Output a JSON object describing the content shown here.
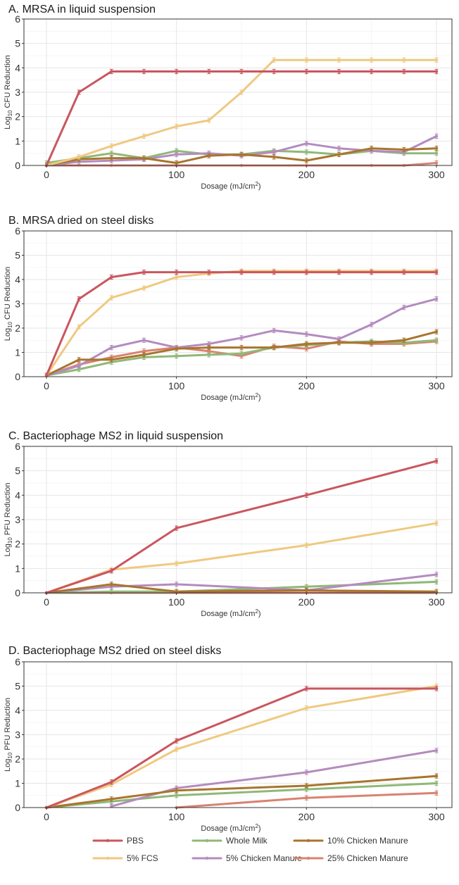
{
  "chart_data": [
    {
      "type": "line",
      "title": "A. MRSA in liquid suspension",
      "xlabel": "Dosage (mJ/cm2)",
      "ylabel": "Log10 CFU Reduction",
      "xlim": [
        0,
        300
      ],
      "ylim": [
        0,
        6
      ],
      "xticks": [
        0,
        100,
        200,
        300
      ],
      "yticks": [
        0,
        1,
        2,
        3,
        4,
        5,
        6
      ],
      "grid": true,
      "series": [
        {
          "name": "PBS",
          "x": [
            0,
            25,
            50,
            75,
            100,
            125,
            150,
            175,
            200,
            225,
            250,
            275,
            300
          ],
          "y": [
            0,
            3.0,
            3.85,
            3.85,
            3.85,
            3.85,
            3.85,
            3.85,
            3.85,
            3.85,
            3.85,
            3.85,
            3.85
          ]
        },
        {
          "name": "5% FCS",
          "x": [
            0,
            25,
            50,
            75,
            100,
            125,
            150,
            175,
            200,
            225,
            250,
            275,
            300
          ],
          "y": [
            0,
            0.35,
            0.8,
            1.2,
            1.6,
            1.85,
            3.0,
            4.32,
            4.32,
            4.32,
            4.32,
            4.32,
            4.32
          ]
        },
        {
          "name": "Whole Milk",
          "x": [
            0,
            25,
            50,
            75,
            100,
            125,
            150,
            175,
            200,
            225,
            250,
            275,
            300
          ],
          "y": [
            0.1,
            0.3,
            0.5,
            0.3,
            0.6,
            0.45,
            0.45,
            0.6,
            0.55,
            0.45,
            0.6,
            0.5,
            0.5
          ]
        },
        {
          "name": "5% Chicken Manure",
          "x": [
            0,
            25,
            50,
            75,
            100,
            125,
            150,
            175,
            200,
            225,
            250,
            275,
            300
          ],
          "y": [
            0,
            0.15,
            0.2,
            0.25,
            0.45,
            0.5,
            0.4,
            0.55,
            0.9,
            0.7,
            0.6,
            0.55,
            1.2
          ]
        },
        {
          "name": "10% Chicken Manure",
          "x": [
            0,
            25,
            50,
            75,
            100,
            125,
            150,
            175,
            200,
            225,
            250,
            275,
            300
          ],
          "y": [
            0,
            0.25,
            0.3,
            0.3,
            0.1,
            0.4,
            0.45,
            0.35,
            0.2,
            0.45,
            0.7,
            0.65,
            0.7
          ]
        },
        {
          "name": "25% Chicken Manure",
          "x": [
            0,
            50,
            100,
            150,
            200,
            250,
            275,
            300
          ],
          "y": [
            0,
            0,
            0,
            0,
            0,
            0,
            0,
            0.1
          ]
        }
      ]
    },
    {
      "type": "line",
      "title": "B. MRSA dried on steel disks",
      "xlabel": "Dosage (mJ/cm2)",
      "ylabel": "Log10 CFU Reduction",
      "xlim": [
        0,
        300
      ],
      "ylim": [
        0,
        6
      ],
      "xticks": [
        0,
        100,
        200,
        300
      ],
      "yticks": [
        0,
        1,
        2,
        3,
        4,
        5,
        6
      ],
      "grid": true,
      "series": [
        {
          "name": "PBS",
          "x": [
            0,
            25,
            50,
            75,
            100,
            125,
            150,
            175,
            200,
            225,
            250,
            275,
            300
          ],
          "y": [
            0.05,
            3.2,
            4.1,
            4.3,
            4.3,
            4.3,
            4.3,
            4.3,
            4.3,
            4.3,
            4.3,
            4.3,
            4.3
          ]
        },
        {
          "name": "5% FCS",
          "x": [
            0,
            25,
            50,
            75,
            100,
            125,
            150,
            175,
            200,
            225,
            250,
            275,
            300
          ],
          "y": [
            0.05,
            2.05,
            3.25,
            3.65,
            4.1,
            4.25,
            4.35,
            4.35,
            4.35,
            4.35,
            4.35,
            4.35,
            4.35
          ]
        },
        {
          "name": "Whole Milk",
          "x": [
            0,
            25,
            50,
            75,
            100,
            125,
            150,
            175,
            200,
            225,
            250,
            275,
            300
          ],
          "y": [
            0.05,
            0.3,
            0.6,
            0.8,
            0.85,
            0.9,
            0.95,
            1.2,
            1.3,
            1.4,
            1.45,
            1.4,
            1.5
          ]
        },
        {
          "name": "5% Chicken Manure",
          "x": [
            0,
            25,
            50,
            75,
            100,
            125,
            150,
            175,
            200,
            225,
            250,
            275,
            300
          ],
          "y": [
            0.05,
            0.45,
            1.2,
            1.5,
            1.2,
            1.35,
            1.6,
            1.9,
            1.75,
            1.55,
            2.15,
            2.85,
            3.2
          ]
        },
        {
          "name": "10% Chicken Manure",
          "x": [
            0,
            25,
            50,
            75,
            100,
            125,
            150,
            175,
            200,
            225,
            250,
            275,
            300
          ],
          "y": [
            0.05,
            0.7,
            0.7,
            0.9,
            1.15,
            1.2,
            1.2,
            1.2,
            1.35,
            1.4,
            1.4,
            1.5,
            1.85
          ]
        },
        {
          "name": "25% Chicken Manure",
          "x": [
            0,
            25,
            50,
            75,
            100,
            125,
            150,
            175,
            200,
            225,
            250,
            275,
            300
          ],
          "y": [
            0.05,
            0.5,
            0.8,
            1.05,
            1.2,
            1.05,
            0.85,
            1.25,
            1.15,
            1.45,
            1.35,
            1.35,
            1.45
          ]
        }
      ]
    },
    {
      "type": "line",
      "title": "C. Bacteriophage MS2 in liquid suspension",
      "xlabel": "Dosage (mJ/cm2)",
      "ylabel": "Log10 PFU Reduction",
      "xlim": [
        0,
        300
      ],
      "ylim": [
        0,
        6
      ],
      "xticks": [
        0,
        100,
        200,
        300
      ],
      "yticks": [
        0,
        1,
        2,
        3,
        4,
        5,
        6
      ],
      "grid": true,
      "series": [
        {
          "name": "PBS",
          "x": [
            0,
            50,
            100,
            200,
            300
          ],
          "y": [
            0,
            0.9,
            2.65,
            4.0,
            5.4
          ]
        },
        {
          "name": "5% FCS",
          "x": [
            0,
            50,
            100,
            200,
            300
          ],
          "y": [
            0,
            0.95,
            1.2,
            1.95,
            2.85
          ]
        },
        {
          "name": "Whole Milk",
          "x": [
            0,
            50,
            100,
            200,
            300
          ],
          "y": [
            0,
            0.05,
            0.05,
            0.25,
            0.45
          ]
        },
        {
          "name": "5% Chicken Manure",
          "x": [
            0,
            50,
            100,
            200,
            300
          ],
          "y": [
            0,
            0.25,
            0.35,
            0.1,
            0.75
          ]
        },
        {
          "name": "10% Chicken Manure",
          "x": [
            0,
            50,
            100,
            200,
            300
          ],
          "y": [
            0,
            0.35,
            0.05,
            0.1,
            0.05
          ]
        },
        {
          "name": "25% Chicken Manure",
          "x": [
            0,
            50,
            100,
            200,
            300
          ],
          "y": [
            0,
            0,
            0,
            0,
            0
          ]
        }
      ]
    },
    {
      "type": "line",
      "title": "D. Bacteriophage MS2 dried on steel disks",
      "xlabel": "Dosage (mJ/cm2)",
      "ylabel": "Log10 PFU Reduction",
      "xlim": [
        0,
        300
      ],
      "ylim": [
        0,
        6
      ],
      "xticks": [
        0,
        100,
        200,
        300
      ],
      "yticks": [
        0,
        1,
        2,
        3,
        4,
        5,
        6
      ],
      "grid": true,
      "series": [
        {
          "name": "PBS",
          "x": [
            0,
            50,
            100,
            200,
            300
          ],
          "y": [
            0,
            1.05,
            2.75,
            4.9,
            4.9
          ]
        },
        {
          "name": "5% FCS",
          "x": [
            0,
            50,
            100,
            200,
            300
          ],
          "y": [
            0,
            0.95,
            2.4,
            4.1,
            5.0
          ]
        },
        {
          "name": "Whole Milk",
          "x": [
            0,
            50,
            100,
            200,
            300
          ],
          "y": [
            0,
            0.25,
            0.5,
            0.75,
            1.0
          ]
        },
        {
          "name": "5% Chicken Manure",
          "x": [
            50,
            100,
            200,
            300
          ],
          "y": [
            0.05,
            0.8,
            1.45,
            2.35
          ]
        },
        {
          "name": "10% Chicken Manure",
          "x": [
            0,
            50,
            100,
            200,
            300
          ],
          "y": [
            0,
            0.35,
            0.7,
            0.9,
            1.3
          ]
        },
        {
          "name": "25% Chicken Manure",
          "x": [
            100,
            200,
            300
          ],
          "y": [
            0,
            0.4,
            0.6
          ]
        }
      ]
    }
  ],
  "legend": {
    "placement": "bottom",
    "items": [
      {
        "name": "PBS",
        "color": "#c9565f"
      },
      {
        "name": "Whole Milk",
        "color": "#8fb878"
      },
      {
        "name": "10% Chicken Manure",
        "color": "#a8752e"
      },
      {
        "name": "5% FCS",
        "color": "#efc981"
      },
      {
        "name": "5% Chicken Manure",
        "color": "#b48bbf"
      },
      {
        "name": "25% Chicken Manure",
        "color": "#d98271"
      }
    ]
  },
  "series_colors": {
    "PBS": "#c9565f",
    "5% FCS": "#efc981",
    "Whole Milk": "#8fb878",
    "5% Chicken Manure": "#b48bbf",
    "10% Chicken Manure": "#a8752e",
    "25% Chicken Manure": "#d98271"
  },
  "draw_order": [
    "25% Chicken Manure",
    "Whole Milk",
    "5% Chicken Manure",
    "10% Chicken Manure",
    "5% FCS",
    "PBS"
  ]
}
